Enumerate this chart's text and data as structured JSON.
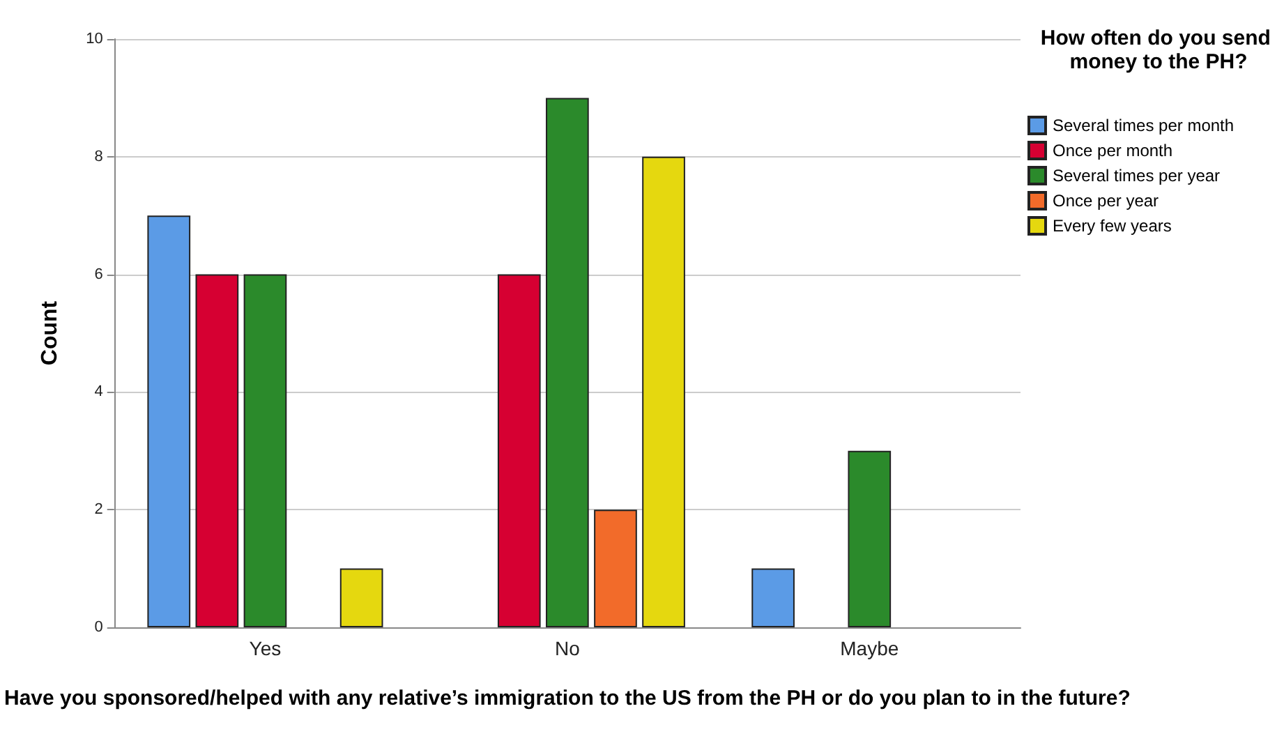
{
  "chart_data": {
    "type": "bar",
    "xlabel": "Have you sponsored/helped with any relative’s immigration to the US from the PH or do you plan to in the future?",
    "ylabel": "Count",
    "legend_title": "How often do you send money to the PH?",
    "categories": [
      "Yes",
      "No",
      "Maybe"
    ],
    "series": [
      {
        "name": "Several times per month",
        "color": "#5b9be6",
        "values": [
          7,
          null,
          1
        ]
      },
      {
        "name": "Once per month",
        "color": "#d60032",
        "values": [
          6,
          6,
          null
        ]
      },
      {
        "name": "Several times per year",
        "color": "#2b8a2b",
        "values": [
          6,
          9,
          3
        ]
      },
      {
        "name": "Once per year",
        "color": "#f26b2a",
        "values": [
          null,
          2,
          null
        ]
      },
      {
        "name": "Every few years",
        "color": "#e5d80f",
        "values": [
          1,
          8,
          null
        ]
      }
    ],
    "ylim": [
      0,
      10
    ],
    "yticks": [
      0,
      2,
      4,
      6,
      8,
      10
    ],
    "grid": "y",
    "legend": "right"
  }
}
